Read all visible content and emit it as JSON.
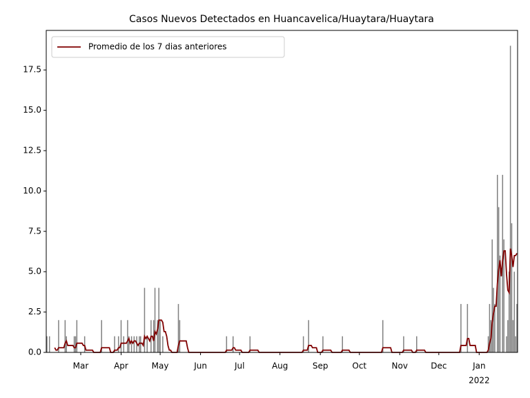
{
  "chart_data": {
    "type": "bar",
    "title": "Casos Nuevos Detectados en Huancavelica/Huaytara/Huaytara",
    "color": "#808080",
    "categories": [
      null,
      null,
      null,
      null,
      null,
      null,
      null,
      null,
      null,
      null,
      null,
      null,
      null,
      null,
      null,
      null,
      null,
      null,
      null,
      null,
      null,
      null,
      null,
      null,
      null,
      null,
      "Mar",
      null,
      null,
      null,
      null,
      null,
      null,
      null,
      null,
      null,
      null,
      null,
      null,
      null,
      null,
      null,
      null,
      null,
      null,
      null,
      null,
      null,
      null,
      null,
      null,
      null,
      null,
      null,
      null,
      null,
      null,
      "Apr",
      null,
      null,
      null,
      null,
      null,
      null,
      null,
      null,
      null,
      null,
      null,
      null,
      null,
      null,
      null,
      null,
      null,
      null,
      null,
      null,
      null,
      null,
      null,
      null,
      null,
      null,
      null,
      null,
      null,
      "May",
      null,
      null,
      null,
      null,
      null,
      null,
      null,
      null,
      null,
      null,
      null,
      null,
      null,
      null,
      null,
      null,
      null,
      null,
      null,
      null,
      null,
      null,
      null,
      null,
      null,
      null,
      null,
      null,
      null,
      null,
      "Jun",
      null,
      null,
      null,
      null,
      null,
      null,
      null,
      null,
      null,
      null,
      null,
      null,
      null,
      null,
      null,
      null,
      null,
      null,
      null,
      null,
      null,
      null,
      null,
      null,
      null,
      null,
      null,
      null,
      null,
      "Jul",
      null,
      null,
      null,
      null,
      null,
      null,
      null,
      null,
      null,
      null,
      null,
      null,
      null,
      null,
      null,
      null,
      null,
      null,
      null,
      null,
      null,
      null,
      null,
      null,
      null,
      null,
      null,
      null,
      null,
      null,
      "Aug",
      null,
      null,
      null,
      null,
      null,
      null,
      null,
      null,
      null,
      null,
      null,
      null,
      null,
      null,
      null,
      null,
      null,
      null,
      null,
      null,
      null,
      null,
      null,
      null,
      null,
      null,
      null,
      null,
      null,
      null,
      "Sep",
      null,
      null,
      null,
      null,
      null,
      null,
      null,
      null,
      null,
      null,
      null,
      null,
      null,
      null,
      null,
      null,
      null,
      null,
      null,
      null,
      null,
      null,
      null,
      null,
      null,
      null,
      null,
      null,
      null,
      "Oct",
      null,
      null,
      null,
      null,
      null,
      null,
      null,
      null,
      null,
      null,
      null,
      null,
      null,
      null,
      null,
      null,
      null,
      null,
      null,
      null,
      null,
      null,
      null,
      null,
      null,
      null,
      null,
      null,
      null,
      null,
      "Nov",
      null,
      null,
      null,
      null,
      null,
      null,
      null,
      null,
      null,
      null,
      null,
      null,
      null,
      null,
      null,
      null,
      null,
      null,
      null,
      null,
      null,
      null,
      null,
      null,
      null,
      null,
      null,
      null,
      null,
      "Dec",
      null,
      null,
      null,
      null,
      null,
      null,
      null,
      null,
      null,
      null,
      null,
      null,
      null,
      null,
      null,
      null,
      null,
      null,
      null,
      null,
      null,
      null,
      null,
      null,
      null,
      null,
      null,
      null,
      null,
      null,
      "Jan",
      null,
      null,
      null,
      null,
      null,
      null,
      null,
      null,
      null,
      null,
      null,
      null,
      null,
      null,
      null,
      null,
      null,
      null,
      null,
      null,
      null,
      null,
      null,
      null,
      null,
      null,
      null,
      null,
      null
    ],
    "x_sublabel": "2022",
    "values": [
      1,
      0,
      1,
      0,
      0,
      0,
      0,
      0,
      0,
      2,
      0,
      0,
      0,
      0,
      2,
      1,
      0,
      0,
      0,
      0,
      0,
      1,
      1,
      2,
      0,
      0,
      0,
      0,
      0,
      1,
      0,
      0,
      0,
      0,
      0,
      0,
      0,
      0,
      0,
      0,
      0,
      0,
      2,
      0,
      0,
      0,
      0,
      0,
      0,
      0,
      0,
      0,
      1,
      0,
      0,
      1,
      0,
      2,
      0,
      1,
      0,
      0,
      2,
      1,
      0,
      1,
      0,
      1,
      0,
      1,
      0,
      1,
      1,
      0,
      0,
      4,
      0,
      1,
      0,
      0,
      2,
      0,
      2,
      4,
      0,
      2,
      4,
      2,
      0,
      1,
      0,
      0,
      0,
      0,
      0,
      0,
      0,
      0,
      0,
      0,
      0,
      3,
      2,
      0,
      0,
      0,
      0,
      0,
      0,
      0,
      0,
      0,
      0,
      0,
      0,
      0,
      0,
      0,
      0,
      0,
      0,
      0,
      0,
      0,
      0,
      0,
      0,
      0,
      0,
      0,
      0,
      0,
      0,
      0,
      0,
      0,
      0,
      0,
      1,
      0,
      0,
      0,
      0,
      1,
      0,
      0,
      0,
      0,
      0,
      0,
      0,
      0,
      0,
      0,
      0,
      0,
      1,
      0,
      0,
      0,
      0,
      0,
      0,
      0,
      0,
      0,
      0,
      0,
      0,
      0,
      0,
      0,
      0,
      0,
      0,
      0,
      0,
      0,
      0,
      0,
      0,
      0,
      0,
      0,
      0,
      0,
      0,
      0,
      0,
      0,
      0,
      0,
      0,
      0,
      0,
      0,
      0,
      1,
      0,
      0,
      0,
      2,
      0,
      0,
      0,
      0,
      0,
      0,
      0,
      0,
      0,
      0,
      1,
      0,
      0,
      0,
      0,
      0,
      0,
      0,
      0,
      0,
      0,
      0,
      0,
      0,
      0,
      1,
      0,
      0,
      0,
      0,
      0,
      0,
      0,
      0,
      0,
      0,
      0,
      0,
      0,
      0,
      0,
      0,
      0,
      0,
      0,
      0,
      0,
      0,
      0,
      0,
      0,
      0,
      0,
      0,
      0,
      0,
      2,
      0,
      0,
      0,
      0,
      0,
      0,
      0,
      0,
      0,
      0,
      0,
      0,
      0,
      0,
      0,
      1,
      0,
      0,
      0,
      0,
      0,
      0,
      0,
      0,
      0,
      1,
      0,
      0,
      0,
      0,
      0,
      0,
      0,
      0,
      0,
      0,
      0,
      0,
      0,
      0,
      0,
      0,
      0,
      0,
      0,
      0,
      0,
      0,
      0,
      0,
      0,
      0,
      0,
      0,
      0,
      0,
      0,
      0,
      0,
      3,
      0,
      0,
      0,
      0,
      3,
      0,
      0,
      0,
      0,
      0,
      0,
      0,
      0,
      0,
      0,
      0,
      0,
      0,
      0,
      0,
      1,
      3,
      2,
      7,
      4,
      3,
      0,
      11,
      9,
      6,
      0,
      11,
      7,
      0,
      1,
      2,
      5,
      19,
      8,
      2,
      5,
      1,
      3
    ],
    "series": [
      {
        "name": "Promedio de los 7 dias anteriores",
        "type": "line",
        "color": "#800000",
        "values": [
          null,
          null,
          null,
          null,
          null,
          null,
          0.29,
          0.14,
          0.14,
          0.29,
          0.29,
          0.29,
          0.29,
          0.29,
          0.57,
          0.71,
          0.43,
          0.43,
          0.43,
          0.43,
          0.43,
          0.29,
          0.29,
          0.57,
          0.57,
          0.57,
          0.57,
          0.57,
          0.43,
          0.43,
          0.14,
          0.14,
          0.14,
          0.14,
          0.14,
          0.14,
          0,
          0,
          0,
          0,
          0,
          0,
          0.29,
          0.29,
          0.29,
          0.29,
          0.29,
          0.29,
          0.29,
          0,
          0,
          0,
          0.14,
          0.14,
          0.14,
          0.29,
          0.29,
          0.57,
          0.57,
          0.57,
          0.57,
          0.57,
          0.71,
          0.86,
          0.57,
          0.71,
          0.57,
          0.71,
          0.71,
          0.57,
          0.43,
          0.57,
          0.57,
          0.57,
          0.43,
          1,
          0.86,
          1,
          0.86,
          0.71,
          1,
          1,
          0.71,
          1.29,
          1.14,
          1.43,
          2,
          2,
          2,
          1.86,
          1.29,
          1.29,
          1,
          0.43,
          0.14,
          0.14,
          0,
          0,
          0,
          0,
          0,
          0.43,
          0.71,
          0.71,
          0.71,
          0.71,
          0.71,
          0.71,
          0.29,
          0,
          0,
          0,
          0,
          0,
          0,
          0,
          0,
          0,
          0,
          0,
          0,
          0,
          0,
          0,
          0,
          0,
          0,
          0,
          0,
          0,
          0,
          0,
          0,
          0,
          0,
          0,
          0,
          0,
          0.14,
          0.14,
          0.14,
          0.14,
          0.14,
          0.29,
          0.29,
          0.14,
          0.14,
          0.14,
          0.14,
          0.14,
          0,
          0,
          0,
          0,
          0,
          0,
          0.14,
          0.14,
          0.14,
          0.14,
          0.14,
          0.14,
          0.14,
          0,
          0,
          0,
          0,
          0,
          0,
          0,
          0,
          0,
          0,
          0,
          0,
          0,
          0,
          0,
          0,
          0,
          0,
          0,
          0,
          0,
          0,
          0,
          0,
          0,
          0,
          0,
          0,
          0,
          0,
          0,
          0,
          0,
          0,
          0.14,
          0.14,
          0.14,
          0.14,
          0.43,
          0.43,
          0.43,
          0.29,
          0.29,
          0.29,
          0.29,
          0,
          0,
          0,
          0,
          0.14,
          0.14,
          0.14,
          0.14,
          0.14,
          0.14,
          0.14,
          0,
          0,
          0,
          0,
          0,
          0,
          0,
          0,
          0.14,
          0.14,
          0.14,
          0.14,
          0.14,
          0.14,
          0,
          0,
          0,
          0,
          0,
          0,
          0,
          0,
          0,
          0,
          0,
          0,
          0,
          0,
          0,
          0,
          0,
          0,
          0,
          0,
          0,
          0,
          0,
          0,
          0,
          0.29,
          0.29,
          0.29,
          0.29,
          0.29,
          0.29,
          0.29,
          0,
          0,
          0,
          0,
          0,
          0,
          0,
          0,
          0,
          0.14,
          0.14,
          0.14,
          0.14,
          0.14,
          0.14,
          0.14,
          0,
          0,
          0,
          0.14,
          0.14,
          0.14,
          0.14,
          0.14,
          0.14,
          0.14,
          0,
          0,
          0,
          0,
          0,
          0,
          0,
          0,
          0,
          0,
          0,
          0,
          0,
          0,
          0,
          0,
          0,
          0,
          0,
          0,
          0,
          0,
          0,
          0,
          0,
          0,
          0,
          0.43,
          0.43,
          0.43,
          0.43,
          0.43,
          0.86,
          0.86,
          0.43,
          0.43,
          0.43,
          0.43,
          0.43,
          0,
          0,
          0,
          0,
          0,
          0,
          0,
          0,
          0,
          0.14,
          0.57,
          0.86,
          1.86,
          2.43,
          2.86,
          2.86,
          4.29,
          5.14,
          5.71,
          4.71,
          5.71,
          6.29,
          6.29,
          4.86,
          3.86,
          3.71,
          6.43,
          6,
          5.29,
          6,
          6,
          6.14
        ]
      }
    ],
    "ylim": [
      0,
      19.95
    ],
    "yticks": [
      {
        "value": 0,
        "label": "0.0"
      },
      2.5,
      {
        "value": 5,
        "label": "5.0"
      },
      7.5,
      {
        "value": 10,
        "label": "10.0"
      },
      12.5,
      {
        "value": 15,
        "label": "15.0"
      },
      17.5
    ],
    "legend": "upper left",
    "grid": false
  }
}
